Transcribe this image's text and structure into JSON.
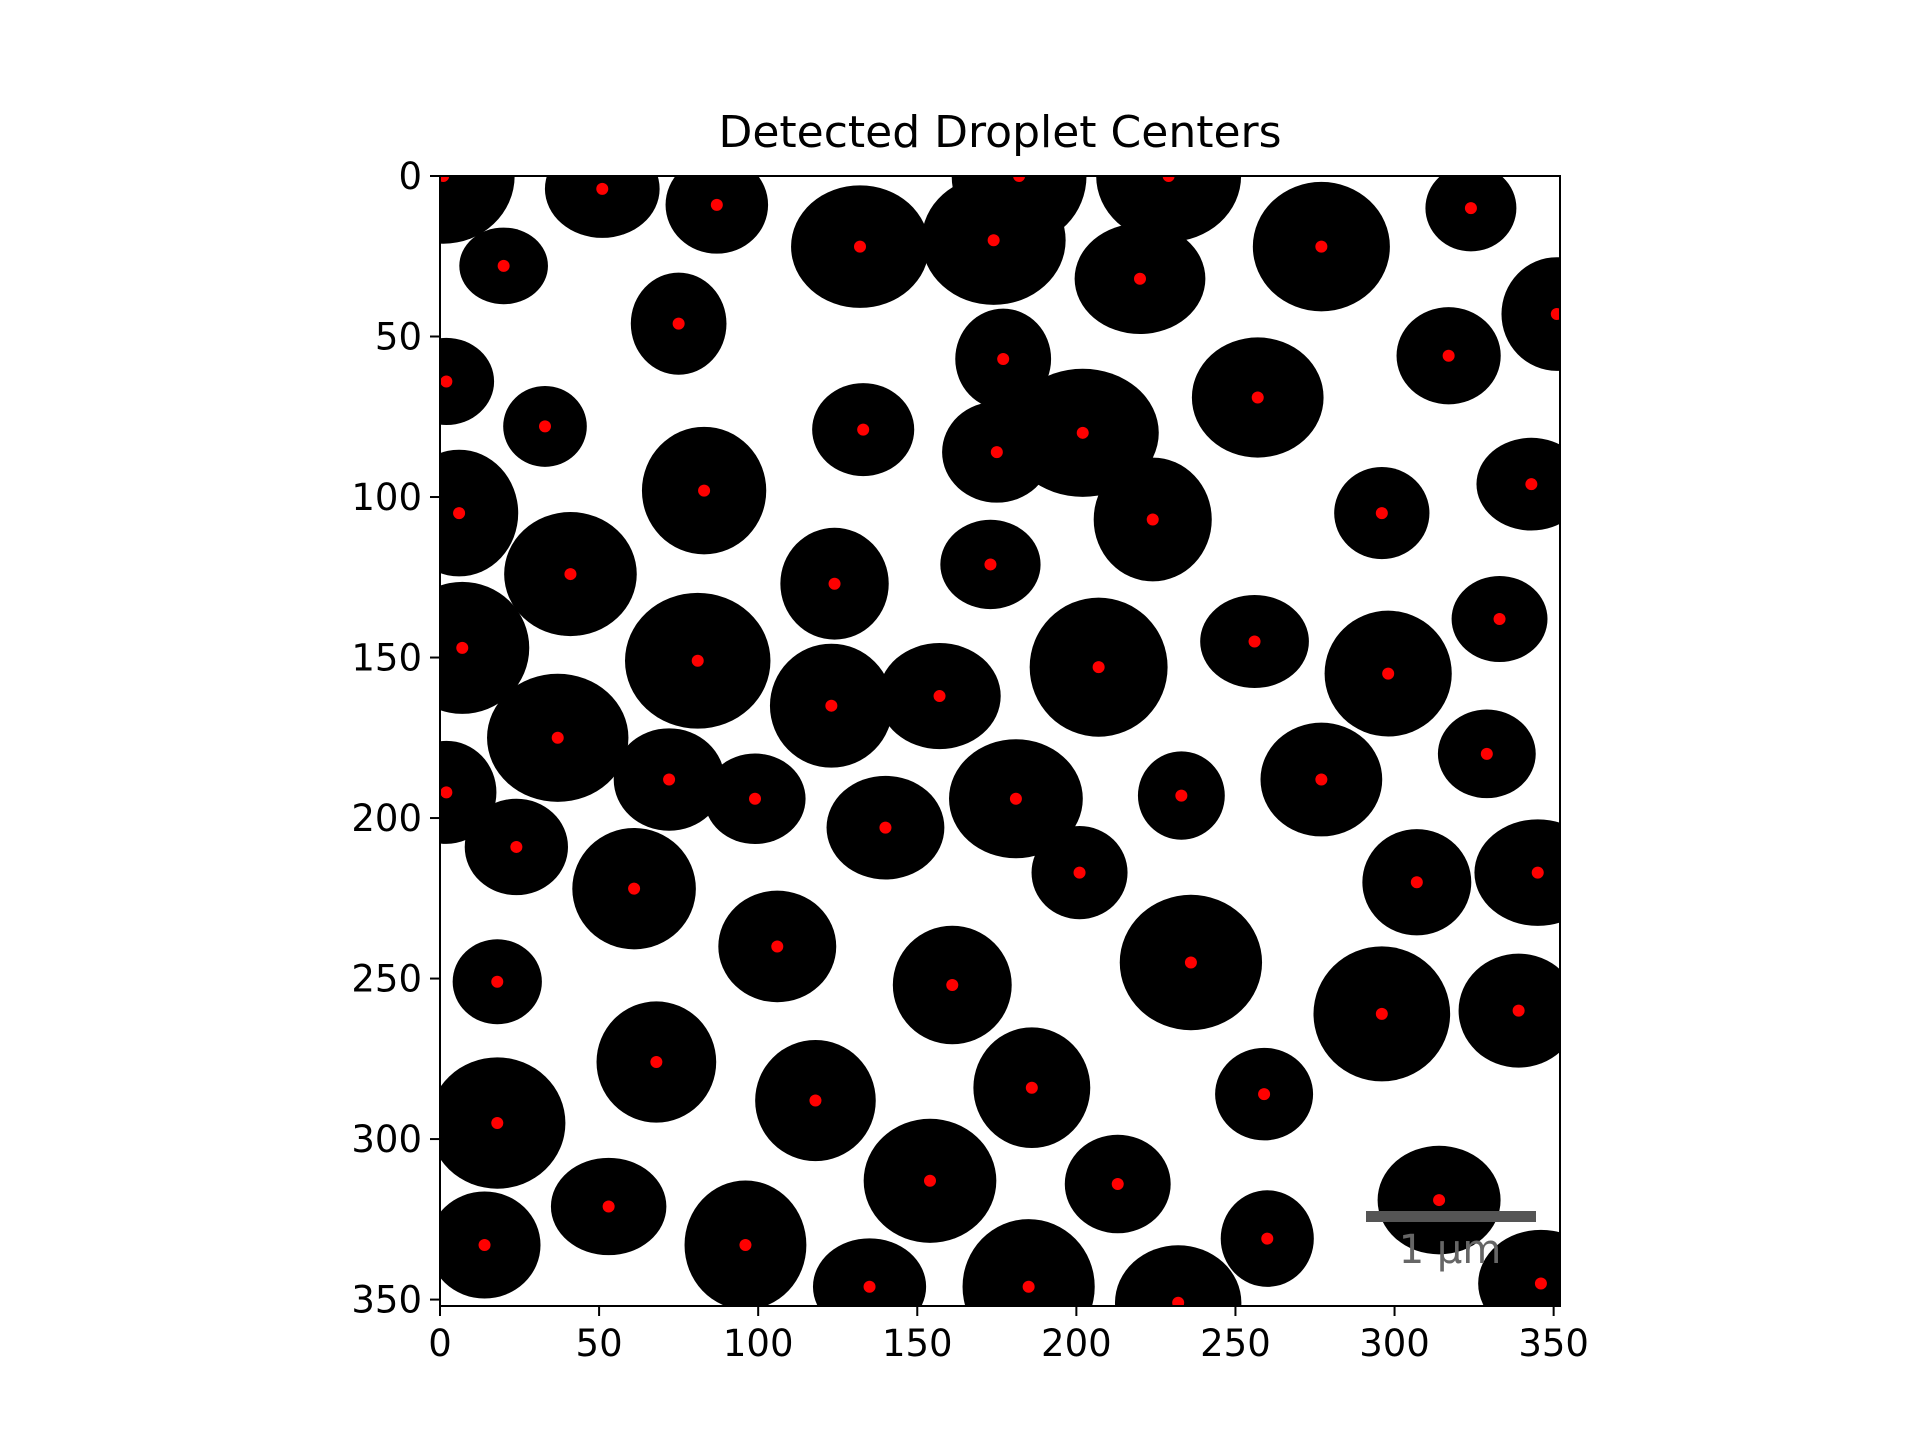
{
  "chart_data": {
    "type": "scatter",
    "title": "Detected Droplet Centers",
    "xlabel": "",
    "ylabel": "",
    "xlim": [
      0,
      352
    ],
    "ylim": [
      352,
      0
    ],
    "x_ticks": [
      0,
      50,
      100,
      150,
      200,
      250,
      300,
      350
    ],
    "y_ticks": [
      0,
      50,
      100,
      150,
      200,
      250,
      300,
      350
    ],
    "background_image": "binary micrograph: black droplets on white background",
    "scale_bar_label": "1 μm",
    "marker_color": "#ff0000",
    "droplet_color": "#000000",
    "points": [
      {
        "x": 1,
        "y": 0
      },
      {
        "x": 51,
        "y": 4
      },
      {
        "x": 87,
        "y": 9
      },
      {
        "x": 182,
        "y": 0
      },
      {
        "x": 229,
        "y": 0
      },
      {
        "x": 324,
        "y": 10
      },
      {
        "x": 20,
        "y": 28
      },
      {
        "x": 132,
        "y": 22
      },
      {
        "x": 174,
        "y": 20
      },
      {
        "x": 220,
        "y": 32
      },
      {
        "x": 277,
        "y": 22
      },
      {
        "x": 75,
        "y": 46
      },
      {
        "x": 351,
        "y": 43
      },
      {
        "x": 177,
        "y": 57
      },
      {
        "x": 317,
        "y": 56
      },
      {
        "x": 2,
        "y": 64
      },
      {
        "x": 257,
        "y": 69
      },
      {
        "x": 33,
        "y": 78
      },
      {
        "x": 133,
        "y": 79
      },
      {
        "x": 202,
        "y": 80
      },
      {
        "x": 175,
        "y": 86
      },
      {
        "x": 83,
        "y": 98
      },
      {
        "x": 6,
        "y": 105
      },
      {
        "x": 224,
        "y": 107
      },
      {
        "x": 296,
        "y": 105
      },
      {
        "x": 343,
        "y": 96
      },
      {
        "x": 41,
        "y": 124
      },
      {
        "x": 124,
        "y": 127
      },
      {
        "x": 173,
        "y": 121
      },
      {
        "x": 333,
        "y": 138
      },
      {
        "x": 7,
        "y": 147
      },
      {
        "x": 81,
        "y": 151
      },
      {
        "x": 207,
        "y": 153
      },
      {
        "x": 256,
        "y": 145
      },
      {
        "x": 298,
        "y": 155
      },
      {
        "x": 157,
        "y": 162
      },
      {
        "x": 123,
        "y": 165
      },
      {
        "x": 37,
        "y": 175
      },
      {
        "x": 329,
        "y": 180
      },
      {
        "x": 72,
        "y": 188
      },
      {
        "x": 2,
        "y": 192
      },
      {
        "x": 99,
        "y": 194
      },
      {
        "x": 181,
        "y": 194
      },
      {
        "x": 233,
        "y": 193
      },
      {
        "x": 277,
        "y": 188
      },
      {
        "x": 140,
        "y": 203
      },
      {
        "x": 24,
        "y": 209
      },
      {
        "x": 201,
        "y": 217
      },
      {
        "x": 61,
        "y": 222
      },
      {
        "x": 307,
        "y": 220
      },
      {
        "x": 345,
        "y": 217
      },
      {
        "x": 106,
        "y": 240
      },
      {
        "x": 236,
        "y": 245
      },
      {
        "x": 18,
        "y": 251
      },
      {
        "x": 161,
        "y": 252
      },
      {
        "x": 296,
        "y": 261
      },
      {
        "x": 339,
        "y": 260
      },
      {
        "x": 68,
        "y": 276
      },
      {
        "x": 118,
        "y": 288
      },
      {
        "x": 186,
        "y": 284
      },
      {
        "x": 259,
        "y": 286
      },
      {
        "x": 18,
        "y": 295
      },
      {
        "x": 154,
        "y": 313
      },
      {
        "x": 213,
        "y": 314
      },
      {
        "x": 314,
        "y": 319
      },
      {
        "x": 53,
        "y": 321
      },
      {
        "x": 14,
        "y": 333
      },
      {
        "x": 96,
        "y": 333
      },
      {
        "x": 260,
        "y": 331
      },
      {
        "x": 135,
        "y": 346
      },
      {
        "x": 185,
        "y": 346
      },
      {
        "x": 346,
        "y": 345
      },
      {
        "x": 232,
        "y": 351
      }
    ]
  }
}
